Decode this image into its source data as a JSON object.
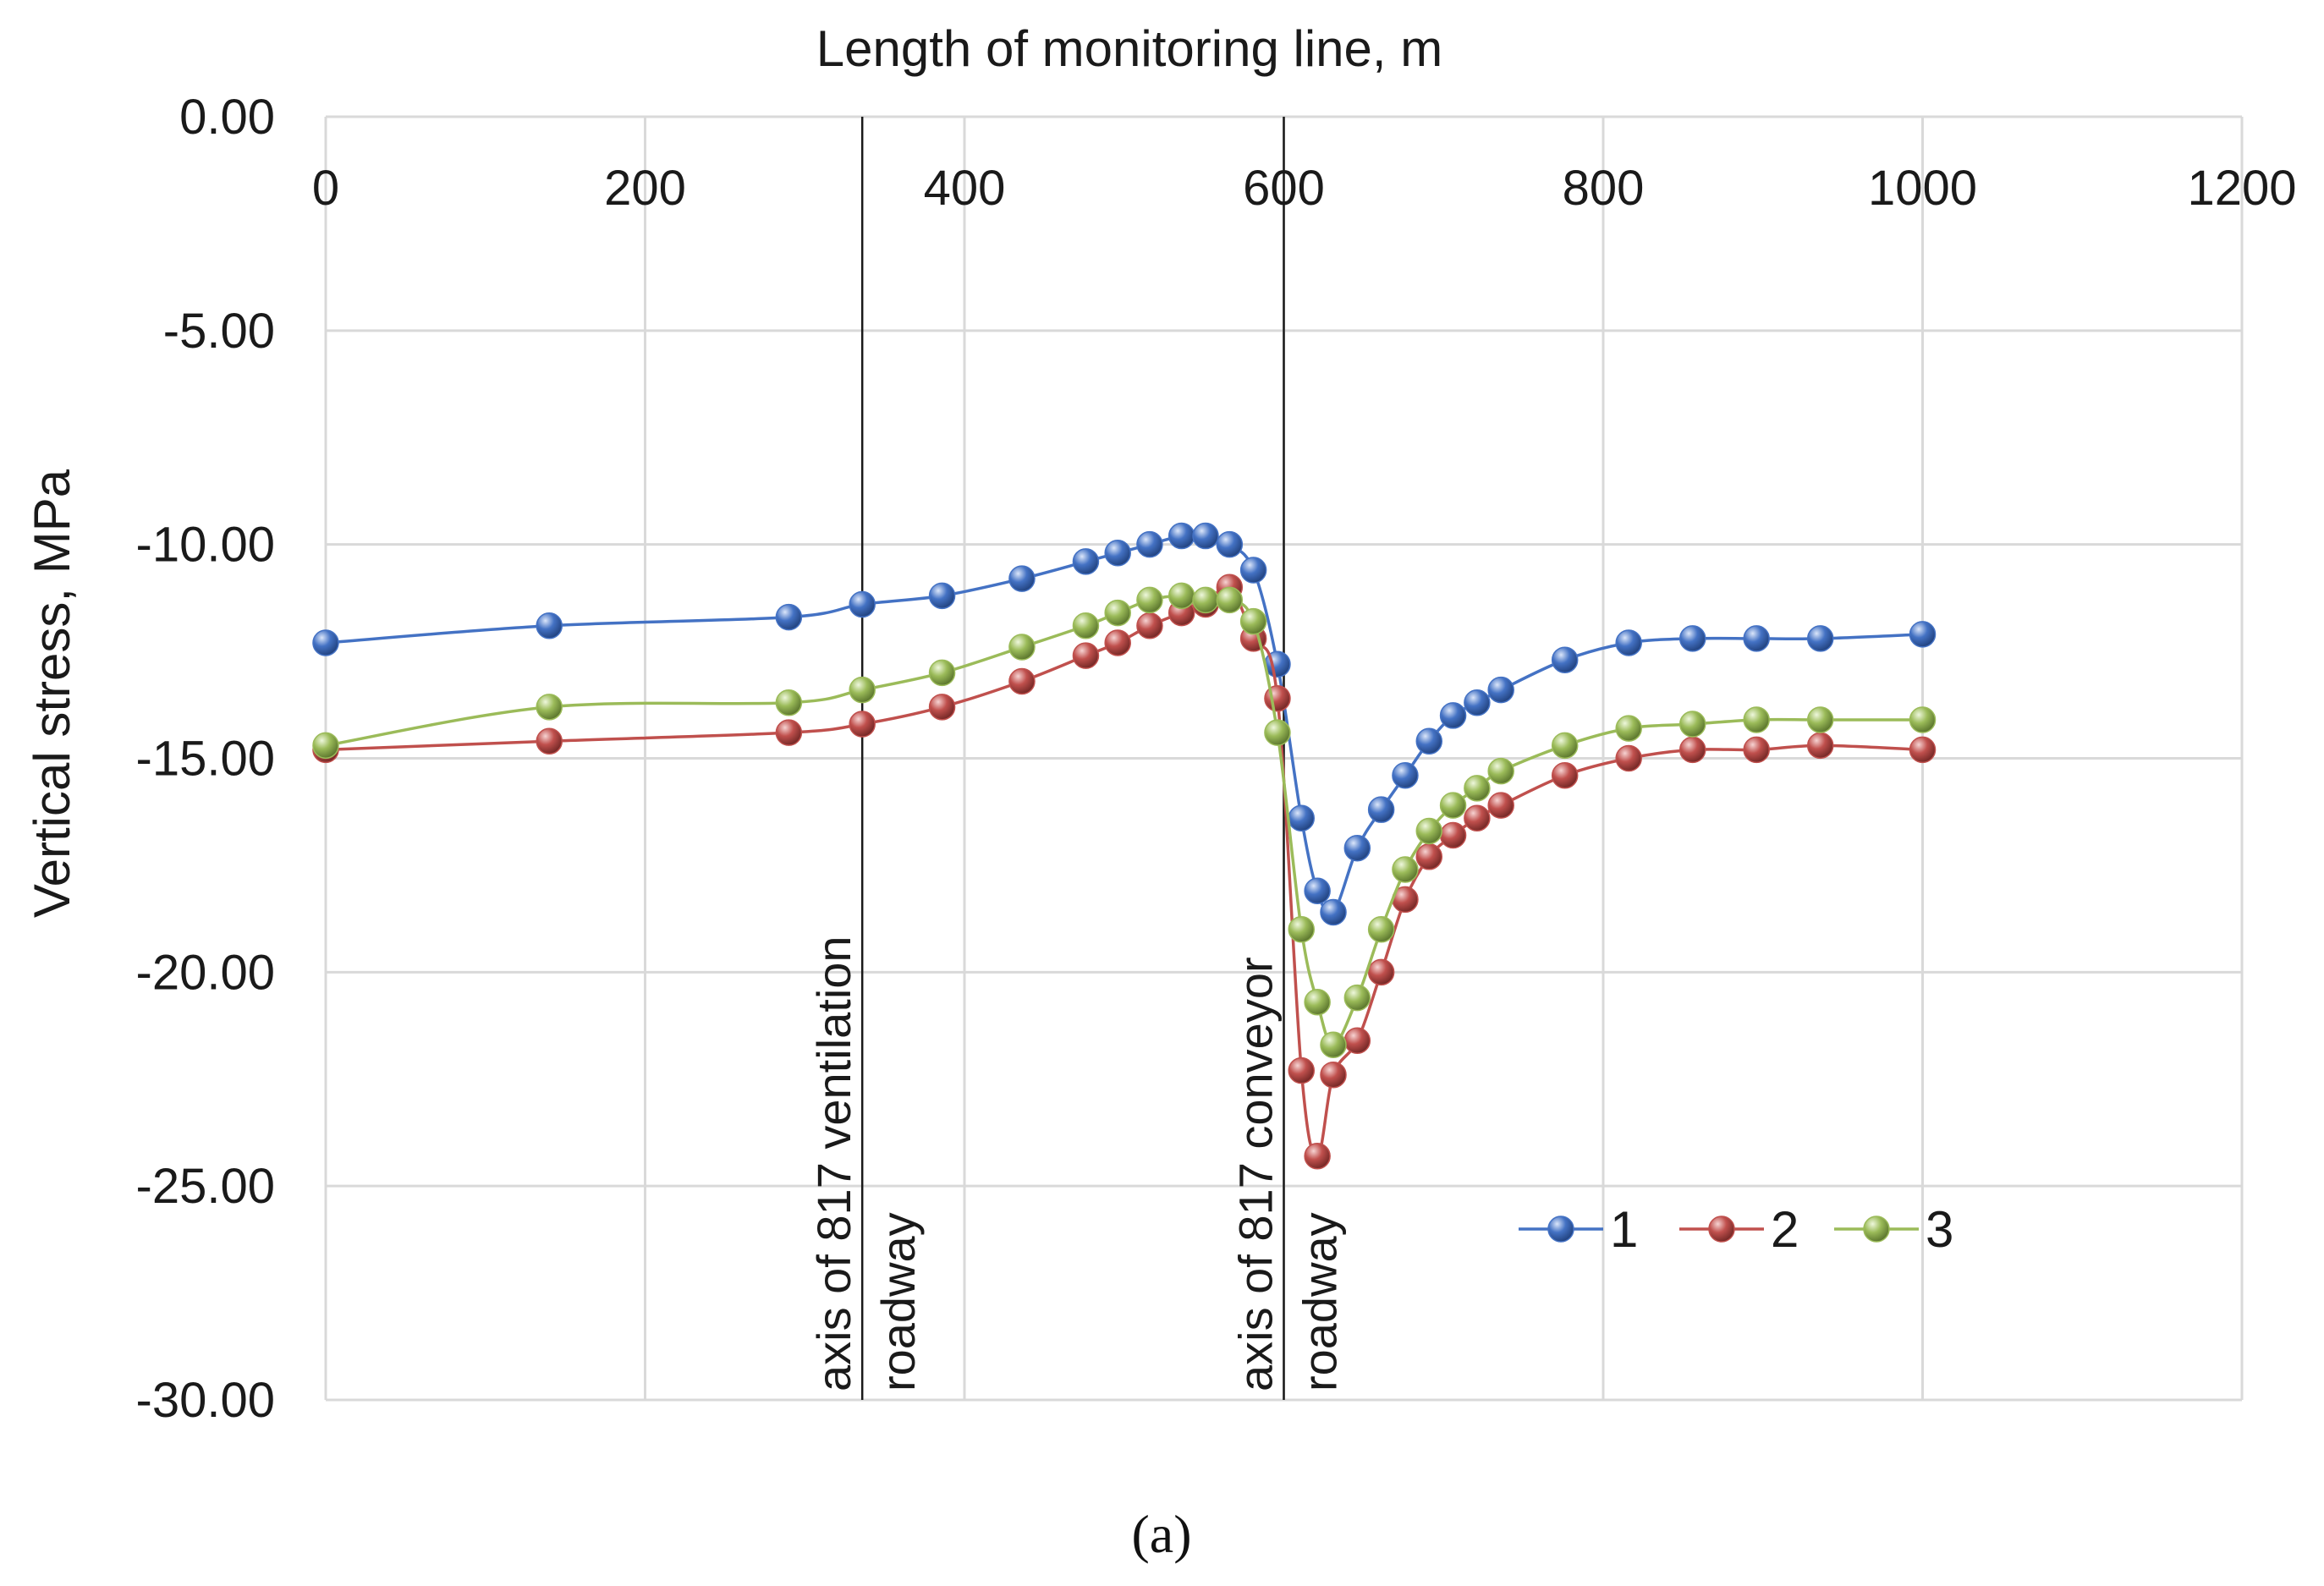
{
  "chart_data": {
    "type": "scatter",
    "title": "",
    "xlabel": "Length of monitoring line, m",
    "ylabel": "Vertical stress, MPa",
    "xlim": [
      0,
      1200
    ],
    "ylim": [
      -30,
      0
    ],
    "x_ticks": [
      "0",
      "200",
      "400",
      "600",
      "800",
      "1000",
      "1200"
    ],
    "y_ticks": [
      "0.00",
      "-5.00",
      "-10.00",
      "-15.00",
      "-20.00",
      "-25.00",
      "-30.00"
    ],
    "grid": true,
    "legend_position": "lower-right",
    "series": [
      {
        "name": "1",
        "color": "#4472C4",
        "x": [
          0,
          140,
          290,
          336,
          386,
          436,
          476,
          496,
          516,
          536,
          551,
          566,
          581,
          596,
          611,
          621,
          631,
          646,
          661,
          676,
          691,
          706,
          721,
          736,
          776,
          816,
          856,
          896,
          936,
          1000
        ],
        "y": [
          -12.3,
          -11.9,
          -11.7,
          -11.4,
          -11.2,
          -10.8,
          -10.4,
          -10.2,
          -10.0,
          -9.8,
          -9.8,
          -10.0,
          -10.6,
          -12.8,
          -16.4,
          -18.1,
          -18.6,
          -17.1,
          -16.2,
          -15.4,
          -14.6,
          -14.0,
          -13.7,
          -13.4,
          -12.7,
          -12.3,
          -12.2,
          -12.2,
          -12.2,
          -12.1
        ]
      },
      {
        "name": "2",
        "color": "#C0504D",
        "x": [
          0,
          140,
          290,
          336,
          386,
          436,
          476,
          496,
          516,
          536,
          551,
          566,
          581,
          596,
          611,
          621,
          631,
          646,
          661,
          676,
          691,
          706,
          721,
          736,
          776,
          816,
          856,
          896,
          936,
          1000
        ],
        "y": [
          -14.8,
          -14.6,
          -14.4,
          -14.2,
          -13.8,
          -13.2,
          -12.6,
          -12.3,
          -11.9,
          -11.6,
          -11.4,
          -11.0,
          -12.2,
          -13.6,
          -22.3,
          -24.3,
          -22.4,
          -21.6,
          -20.0,
          -18.3,
          -17.3,
          -16.8,
          -16.4,
          -16.1,
          -15.4,
          -15.0,
          -14.8,
          -14.8,
          -14.7,
          -14.8
        ]
      },
      {
        "name": "3",
        "color": "#9BBB59",
        "x": [
          0,
          140,
          290,
          336,
          386,
          436,
          476,
          496,
          516,
          536,
          551,
          566,
          581,
          596,
          611,
          621,
          631,
          646,
          661,
          676,
          691,
          706,
          721,
          736,
          776,
          816,
          856,
          896,
          936,
          1000
        ],
        "y": [
          -14.7,
          -13.8,
          -13.7,
          -13.4,
          -13.0,
          -12.4,
          -11.9,
          -11.6,
          -11.3,
          -11.2,
          -11.3,
          -11.3,
          -11.8,
          -14.4,
          -19.0,
          -20.7,
          -21.7,
          -20.6,
          -19.0,
          -17.6,
          -16.7,
          -16.1,
          -15.7,
          -15.3,
          -14.7,
          -14.3,
          -14.2,
          -14.1,
          -14.1,
          -14.1
        ]
      }
    ],
    "annotations": [
      {
        "x": 336,
        "line1": "axis of 817 ventilation",
        "line2": "roadway"
      },
      {
        "x": 600,
        "line1": "axis of 817 conveyor",
        "line2": "roadway"
      }
    ],
    "caption": "(a)"
  }
}
